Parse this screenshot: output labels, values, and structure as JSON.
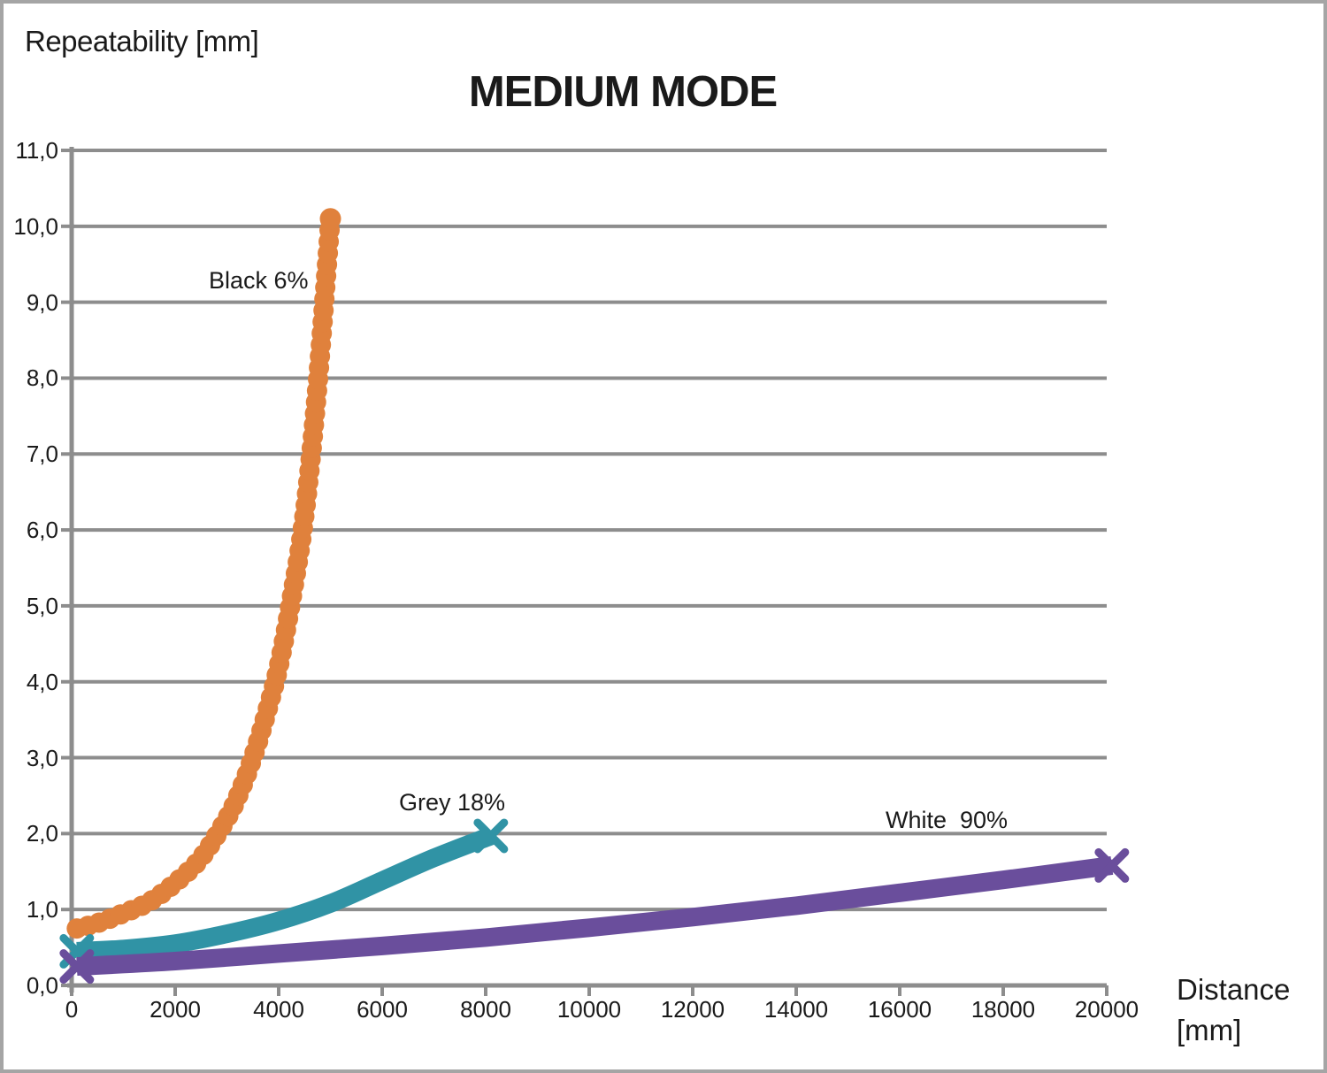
{
  "page": {
    "y_axis_title": "Repeatability [mm]",
    "title": "MEDIUM MODE",
    "x_axis_title": "Distance\n[mm]"
  },
  "colors": {
    "grid": "#8D8D8D",
    "axis": "#8D8D8D",
    "border": "#A5A5A5",
    "text": "#1A1A1A",
    "black6": "#E0813C",
    "grey18": "#3093A5",
    "white90": "#6A4E9C"
  },
  "chart_data": {
    "type": "line",
    "title": "MEDIUM MODE",
    "xlabel": "Distance [mm]",
    "ylabel": "Repeatability [mm]",
    "xlim": [
      0,
      20000
    ],
    "ylim": [
      0,
      11
    ],
    "grid": "horizontal gridlines only",
    "legend_position": "inline labels near curves",
    "x_ticks": [
      0,
      2000,
      4000,
      6000,
      8000,
      10000,
      12000,
      14000,
      16000,
      18000,
      20000
    ],
    "x_tick_labels": [
      "0",
      "2000",
      "4000",
      "6000",
      "8000",
      "10000",
      "12000",
      "14000",
      "16000",
      "18000",
      "20000"
    ],
    "y_ticks": [
      0,
      1,
      2,
      3,
      4,
      5,
      6,
      7,
      8,
      9,
      10,
      11
    ],
    "y_tick_labels": [
      "0,0",
      "1,0",
      "2,0",
      "3,0",
      "4,0",
      "5,0",
      "6,0",
      "7,0",
      "8,0",
      "9,0",
      "10,0",
      "11,0"
    ],
    "series": [
      {
        "name": "Black 6%",
        "color": "#E0813C",
        "marker": "circle",
        "points": [
          [
            100,
            0.75
          ],
          [
            500,
            0.82
          ],
          [
            1000,
            0.95
          ],
          [
            1500,
            1.1
          ],
          [
            2000,
            1.35
          ],
          [
            2500,
            1.68
          ],
          [
            3000,
            2.2
          ],
          [
            3250,
            2.55
          ],
          [
            3500,
            3.0
          ],
          [
            3750,
            3.55
          ],
          [
            4000,
            4.2
          ],
          [
            4250,
            5.1
          ],
          [
            4500,
            6.2
          ],
          [
            4750,
            7.9
          ],
          [
            5000,
            10.1
          ]
        ]
      },
      {
        "name": "Grey 18%",
        "color": "#3093A5",
        "marker": "x",
        "points": [
          [
            100,
            0.45
          ],
          [
            1000,
            0.48
          ],
          [
            2000,
            0.55
          ],
          [
            3000,
            0.68
          ],
          [
            4000,
            0.85
          ],
          [
            5000,
            1.08
          ],
          [
            6000,
            1.38
          ],
          [
            7000,
            1.68
          ],
          [
            8100,
            1.97
          ]
        ]
      },
      {
        "name": "White  90%",
        "color": "#6A4E9C",
        "marker": "x",
        "points": [
          [
            100,
            0.25
          ],
          [
            2000,
            0.32
          ],
          [
            4000,
            0.42
          ],
          [
            6000,
            0.52
          ],
          [
            8000,
            0.63
          ],
          [
            10000,
            0.76
          ],
          [
            12000,
            0.9
          ],
          [
            14000,
            1.05
          ],
          [
            16000,
            1.22
          ],
          [
            18000,
            1.39
          ],
          [
            20100,
            1.58
          ]
        ]
      }
    ]
  }
}
